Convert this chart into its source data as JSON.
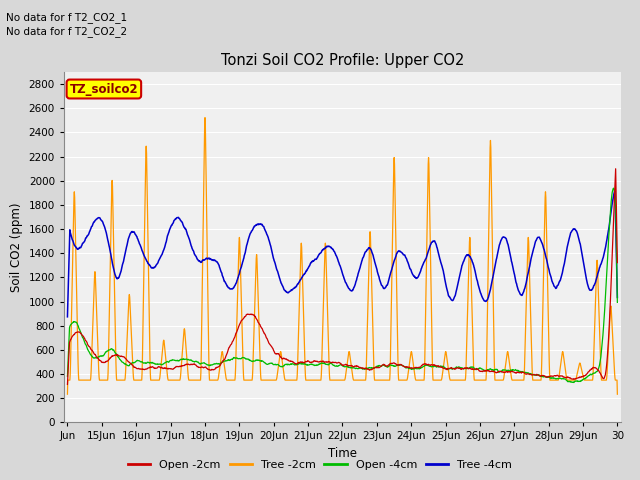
{
  "title": "Tonzi Soil CO2 Profile: Upper CO2",
  "ylabel": "Soil CO2 (ppm)",
  "xlabel": "Time",
  "ylim": [
    0,
    2900
  ],
  "yticks": [
    0,
    200,
    400,
    600,
    800,
    1000,
    1200,
    1400,
    1600,
    1800,
    2000,
    2200,
    2400,
    2600,
    2800
  ],
  "annotation1": "No data for f T2_CO2_1",
  "annotation2": "No data for f T2_CO2_2",
  "legend_label": "TZ_soilco2",
  "legend_text_color": "#8b0000",
  "legend_bg_color": "#ffff00",
  "legend_edge_color": "#cc0000",
  "series_labels": [
    "Open -2cm",
    "Tree -2cm",
    "Open -4cm",
    "Tree -4cm"
  ],
  "series_colors": [
    "#cc0000",
    "#ff9900",
    "#00bb00",
    "#0000cc"
  ],
  "background_color": "#d8d8d8",
  "plot_bg_color": "#f0f0f0",
  "grid_color": "#ffffff",
  "tick_label_dates": [
    "Jun",
    "15Jun",
    "16Jun",
    "17Jun",
    "18Jun",
    "19Jun",
    "20Jun",
    "21Jun",
    "22Jun",
    "23Jun",
    "24Jun",
    "25Jun",
    "26Jun",
    "27Jun",
    "28Jun",
    "29Jun",
    "30"
  ],
  "num_points": 1600
}
